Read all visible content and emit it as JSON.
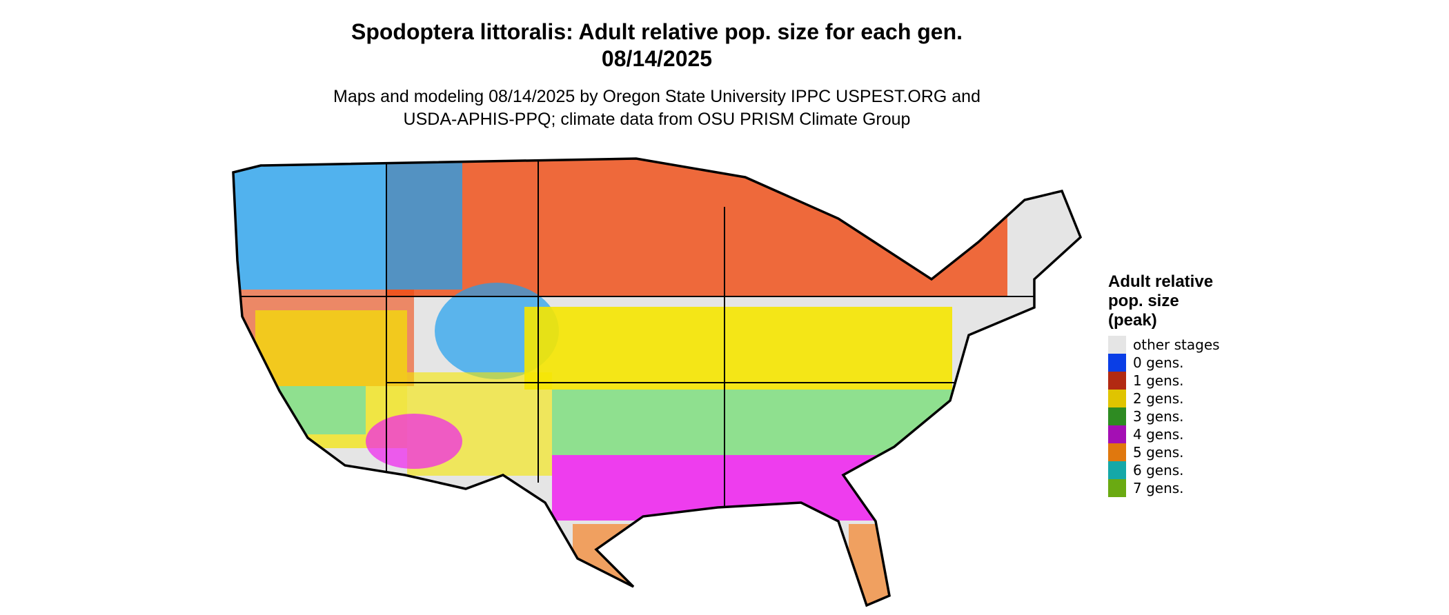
{
  "title": "Spodoptera littoralis: Adult relative pop. size for each gen.",
  "date": "08/14/2025",
  "subtitle": [
    "Maps and modeling 08/14/2025 by Oregon State University IPPC USPEST.ORG and",
    "USDA-APHIS-PPQ; climate data from OSU PRISM Climate Group"
  ],
  "legend": {
    "title": [
      "Adult relative",
      "pop. size",
      "(peak)"
    ],
    "items": [
      {
        "label": "other stages",
        "color": "#e5e5e5"
      },
      {
        "label": "0 gens.",
        "color": "#0a3ee6"
      },
      {
        "label": "1 gens.",
        "color": "#b22a12"
      },
      {
        "label": "2 gens.",
        "color": "#e0c400"
      },
      {
        "label": "3 gens.",
        "color": "#2e8b22"
      },
      {
        "label": "4 gens.",
        "color": "#a40fb4"
      },
      {
        "label": "5 gens.",
        "color": "#e0780e"
      },
      {
        "label": "6 gens.",
        "color": "#15a8a8"
      },
      {
        "label": "7 gens.",
        "color": "#6aaa12"
      }
    ]
  }
}
